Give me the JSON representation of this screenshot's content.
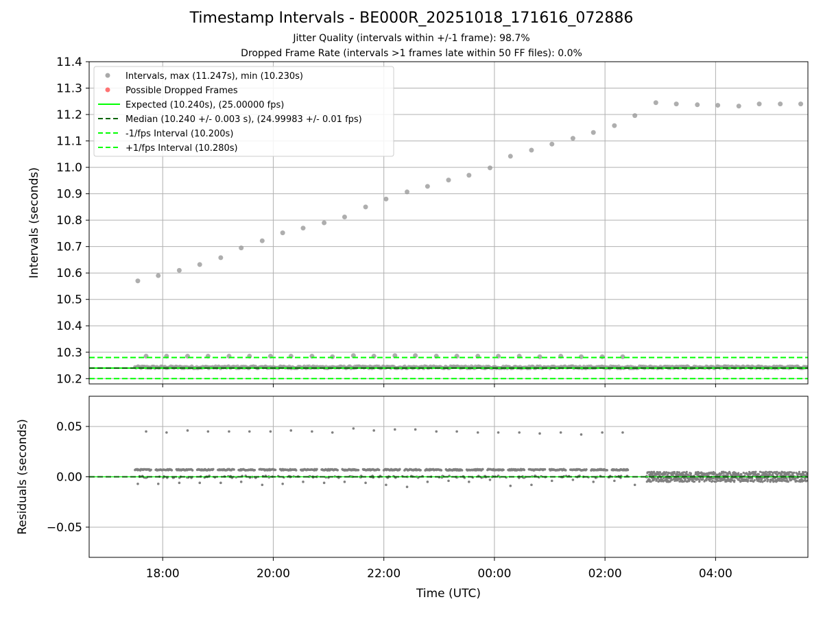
{
  "figure": {
    "title": "Timestamp Intervals - BE000R_20251018_171616_072886",
    "subtitle_jitter": "Jitter Quality (intervals within +/-1 frame): 98.7%",
    "subtitle_dropped": "Dropped Frame Rate (intervals >1 frames late within 50 FF files): 0.0%"
  },
  "colors": {
    "point": "#808080",
    "dropped": "#ff5a5a",
    "expected": "#00ff00",
    "median": "#006400",
    "limits": "#00ff00",
    "grid": "#b0b0b0"
  },
  "chart_data": [
    {
      "type": "scatter",
      "panel": "intervals",
      "title": "",
      "xlabel": "",
      "ylabel": "Intervals (seconds)",
      "xlim_hours": [
        16.67,
        29.67
      ],
      "ylim": [
        10.18,
        11.4
      ],
      "yticks": [
        10.2,
        10.3,
        10.4,
        10.5,
        10.6,
        10.7,
        10.8,
        10.9,
        11.0,
        11.1,
        11.2,
        11.3,
        11.4
      ],
      "ytick_labels": [
        "10.2",
        "10.3",
        "10.4",
        "10.5",
        "10.6",
        "10.7",
        "10.8",
        "10.9",
        "11.0",
        "11.1",
        "11.2",
        "11.3",
        "11.4"
      ],
      "xticks_hours": [
        18,
        20,
        22,
        24,
        26,
        28
      ],
      "grid": true,
      "legend_position": "top-left",
      "legend": [
        {
          "label": "Intervals, max (11.247s), min (10.230s)",
          "kind": "dot",
          "color": "#9a9a9a"
        },
        {
          "label": "Possible Dropped Frames",
          "kind": "dot",
          "color": "#ff5a5a"
        },
        {
          "label": "Expected (10.240s), (25.00000 fps)",
          "kind": "solid",
          "color": "#00ff00"
        },
        {
          "label": "Median (10.240 +/- 0.003 s), (24.99983 +/- 0.01 fps)",
          "kind": "dashed",
          "color": "#006400"
        },
        {
          "label": "-1/fps Interval (10.200s)",
          "kind": "dashed",
          "color": "#00ff00"
        },
        {
          "label": "+1/fps Interval (10.280s)",
          "kind": "dashed",
          "color": "#00ff00"
        }
      ],
      "reference_lines": {
        "expected": 10.24,
        "median": 10.24,
        "minus_one": 10.2,
        "plus_one": 10.28
      },
      "series": [
        {
          "name": "Intervals (drifting upper)",
          "x_hours": [
            17.55,
            17.92,
            18.3,
            18.67,
            19.05,
            19.42,
            19.8,
            20.17,
            20.54,
            20.92,
            21.29,
            21.67,
            22.04,
            22.42,
            22.79,
            23.17,
            23.54,
            23.92,
            24.29,
            24.67,
            25.04,
            25.42,
            25.79,
            26.17,
            26.54,
            26.92,
            27.29,
            27.67,
            28.04,
            28.42,
            28.79,
            29.17,
            29.54
          ],
          "values": [
            10.57,
            10.59,
            10.61,
            10.632,
            10.658,
            10.695,
            10.722,
            10.752,
            10.77,
            10.79,
            10.812,
            10.85,
            10.88,
            10.907,
            10.928,
            10.952,
            10.97,
            10.998,
            11.042,
            11.065,
            11.088,
            11.11,
            11.132,
            11.158,
            11.196,
            11.245,
            11.24,
            11.237,
            11.235,
            11.232,
            11.24,
            11.24,
            11.24
          ]
        },
        {
          "name": "Intervals (late +1 frame)",
          "x_hours": [
            17.7,
            18.07,
            18.45,
            18.82,
            19.2,
            19.57,
            19.95,
            20.32,
            20.7,
            21.07,
            21.45,
            21.82,
            22.2,
            22.57,
            22.95,
            23.32,
            23.7,
            24.07,
            24.45,
            24.82,
            25.2,
            25.57,
            25.95,
            26.32
          ],
          "values": [
            10.285,
            10.285,
            10.285,
            10.285,
            10.285,
            10.285,
            10.285,
            10.285,
            10.285,
            10.283,
            10.287,
            10.285,
            10.287,
            10.287,
            10.285,
            10.285,
            10.285,
            10.285,
            10.285,
            10.283,
            10.285,
            10.283,
            10.283,
            10.283
          ]
        },
        {
          "name": "Intervals (nominal band)",
          "band": {
            "x_from_hours": 17.5,
            "x_to_hours": 29.67,
            "center": 10.243,
            "spread": 0.008
          }
        }
      ]
    },
    {
      "type": "scatter",
      "panel": "residuals",
      "title": "",
      "xlabel": "Time (UTC)",
      "ylabel": "Residuals (seconds)",
      "xlim_hours": [
        16.67,
        29.67
      ],
      "ylim": [
        -0.08,
        0.08
      ],
      "yticks": [
        -0.05,
        0.0,
        0.05
      ],
      "ytick_labels": [
        "−0.05",
        "0.00",
        "0.05"
      ],
      "xticks_hours": [
        18,
        20,
        22,
        24,
        26,
        28
      ],
      "xtick_labels": [
        "18:00",
        "20:00",
        "22:00",
        "00:00",
        "02:00",
        "04:00"
      ],
      "grid": true,
      "reference_lines": {
        "zero": 0.0
      },
      "series": [
        {
          "name": "Residuals (late frames)",
          "x_hours": [
            17.7,
            18.07,
            18.45,
            18.82,
            19.2,
            19.57,
            19.95,
            20.32,
            20.7,
            21.07,
            21.45,
            21.82,
            22.2,
            22.57,
            22.95,
            23.32,
            23.7,
            24.07,
            24.45,
            24.82,
            25.2,
            25.57,
            25.95,
            26.32
          ],
          "values": [
            0.045,
            0.044,
            0.046,
            0.045,
            0.045,
            0.045,
            0.045,
            0.046,
            0.045,
            0.044,
            0.048,
            0.046,
            0.047,
            0.047,
            0.045,
            0.045,
            0.044,
            0.044,
            0.044,
            0.043,
            0.044,
            0.042,
            0.044,
            0.044
          ]
        },
        {
          "name": "Residuals (early frames)",
          "x_hours": [
            17.55,
            17.92,
            18.3,
            18.67,
            19.05,
            19.42,
            19.8,
            20.17,
            20.54,
            20.92,
            21.29,
            21.67,
            22.04,
            22.42,
            22.79,
            23.17,
            23.54,
            23.92,
            24.29,
            24.67,
            25.04,
            25.42,
            25.79,
            26.17,
            26.54
          ],
          "values": [
            -0.007,
            -0.007,
            -0.006,
            -0.006,
            -0.006,
            -0.005,
            -0.008,
            -0.007,
            -0.005,
            -0.006,
            -0.005,
            -0.006,
            -0.008,
            -0.01,
            -0.005,
            -0.004,
            -0.005,
            -0.003,
            -0.009,
            -0.008,
            -0.004,
            -0.003,
            -0.005,
            -0.004,
            -0.008
          ]
        },
        {
          "name": "Residuals (clustered segments)",
          "segments": {
            "start_hours": 17.5,
            "end_hours": 26.5,
            "step_hours": 0.375,
            "length_hours": 0.3,
            "level": 0.007
          }
        },
        {
          "name": "Residuals (noise band)",
          "band": {
            "x_from_hours": 26.75,
            "x_to_hours": 29.67,
            "center": 0.0,
            "spread": 0.005
          }
        }
      ]
    }
  ]
}
